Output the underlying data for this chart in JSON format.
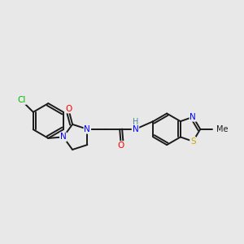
{
  "background_color": "#e8e8e8",
  "bond_color": "#1a1a1a",
  "atom_colors": {
    "N": "#0000ff",
    "O": "#ff0000",
    "S": "#ccaa00",
    "Cl": "#00bb00",
    "H": "#4a8a8a",
    "C": "#1a1a1a"
  },
  "figsize": [
    3.0,
    3.0
  ],
  "dpi": 100
}
